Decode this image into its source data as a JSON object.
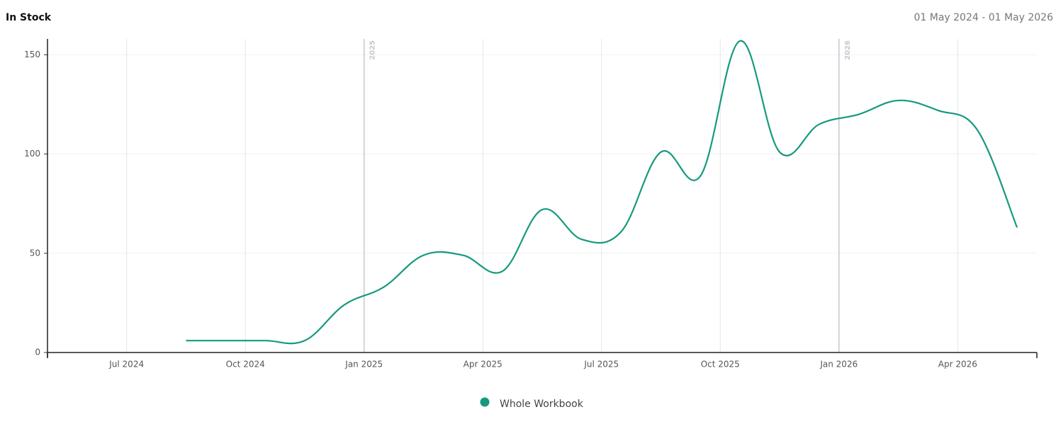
{
  "chart_data": {
    "type": "line",
    "title": "In Stock",
    "subtitle": "01 May 2024 - 01 May 2026",
    "x": [
      "2024-08",
      "2024-09",
      "2024-10",
      "2024-11",
      "2024-12",
      "2025-01",
      "2025-02",
      "2025-03",
      "2025-04",
      "2025-05",
      "2025-06",
      "2025-07",
      "2025-08",
      "2025-09",
      "2025-10",
      "2025-11",
      "2025-12",
      "2026-01",
      "2026-02",
      "2026-03",
      "2026-04",
      "2026-05"
    ],
    "series": [
      {
        "name": "Whole Workbook",
        "color": "#16997f",
        "values": [
          6,
          6,
          6,
          6,
          24,
          33,
          49,
          49,
          41,
          72,
          57,
          61,
          101,
          89,
          157,
          101,
          115,
          120,
          127,
          122,
          112,
          63
        ]
      }
    ],
    "xlim": [
      "2024-05",
      "2026-06"
    ],
    "xticks": [
      {
        "value": "2024-07",
        "label": "Jul 2024"
      },
      {
        "value": "2024-10",
        "label": "Oct 2024"
      },
      {
        "value": "2025-01",
        "label": "Jan 2025"
      },
      {
        "value": "2025-04",
        "label": "Apr 2025"
      },
      {
        "value": "2025-07",
        "label": "Jul 2025"
      },
      {
        "value": "2025-10",
        "label": "Oct 2025"
      },
      {
        "value": "2026-01",
        "label": "Jan 2026"
      },
      {
        "value": "2026-04",
        "label": "Apr 2026"
      }
    ],
    "year_markers": [
      {
        "value": "2025-01",
        "label": "2025"
      },
      {
        "value": "2026-01",
        "label": "2026"
      }
    ],
    "ylim": [
      0,
      158
    ],
    "yticks": [
      0,
      50,
      100,
      150
    ],
    "grid": true
  }
}
